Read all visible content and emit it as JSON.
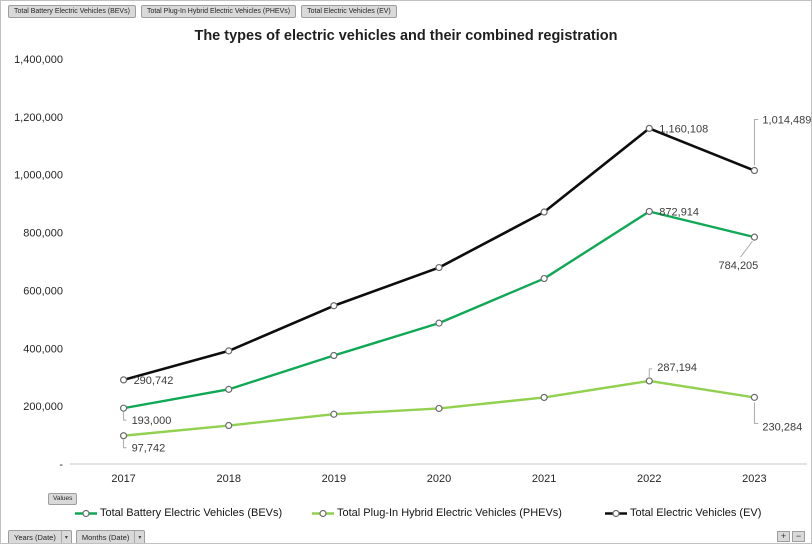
{
  "pivot_buttons": {
    "series_fields": [
      "Total Battery Electric Vehicles (BEVs)",
      "Total Plug-In Hybrid Electric Vehicles (PHEVs)",
      "Total Electric Vehicles (EV)"
    ],
    "values_button": "Values",
    "axis_fields": [
      {
        "label": "Years (Date)",
        "arrow": "▾"
      },
      {
        "label": "Months (Date)",
        "arrow": "▾"
      }
    ],
    "expand_button": "+",
    "collapse_button": "−"
  },
  "chart_data": {
    "type": "line",
    "title": "The types of electric vehicles and their combined registration",
    "categories": [
      "2017",
      "2018",
      "2019",
      "2020",
      "2021",
      "2022",
      "2023"
    ],
    "series": [
      {
        "name": "Total Battery Electric Vehicles (BEVs)",
        "color": "#0fa855",
        "values": [
          193000,
          258000,
          375000,
          487000,
          641000,
          872914,
          784205
        ]
      },
      {
        "name": "Total Plug-In Hybrid Electric Vehicles (PHEVs)",
        "color": "#92d050",
        "values": [
          97742,
          133000,
          172000,
          192000,
          230000,
          287194,
          230284
        ]
      },
      {
        "name": "Total Electric Vehicles (EV)",
        "color": "#0d0d0d",
        "values": [
          290742,
          391000,
          547000,
          679000,
          871000,
          1160108,
          1014489
        ]
      }
    ],
    "visible_point_labels": [
      {
        "series": 2,
        "index": 0,
        "text": "290,742",
        "placement": "right"
      },
      {
        "series": 0,
        "index": 0,
        "text": "193,000",
        "placement": "below-right"
      },
      {
        "series": 1,
        "index": 0,
        "text": "97,742",
        "placement": "below-right"
      },
      {
        "series": 2,
        "index": 5,
        "text": "1,160,108",
        "placement": "right"
      },
      {
        "series": 0,
        "index": 5,
        "text": "872,914",
        "placement": "right"
      },
      {
        "series": 1,
        "index": 5,
        "text": "287,194",
        "placement": "above-right"
      },
      {
        "series": 2,
        "index": 6,
        "text": "1,014,489",
        "placement": "callout-above"
      },
      {
        "series": 0,
        "index": 6,
        "text": "784,205",
        "placement": "callout-below-left"
      },
      {
        "series": 1,
        "index": 6,
        "text": "230,284",
        "placement": "callout-below"
      }
    ],
    "y_axis": {
      "min": 0,
      "max": 1400000,
      "step": 200000,
      "zero_label": "-"
    },
    "grid": false,
    "legend_position": "bottom",
    "marker_stroke_color": "#6b6b6b",
    "leader_line_color": "#ababab",
    "axis_line_color": "#c9c9c9"
  }
}
